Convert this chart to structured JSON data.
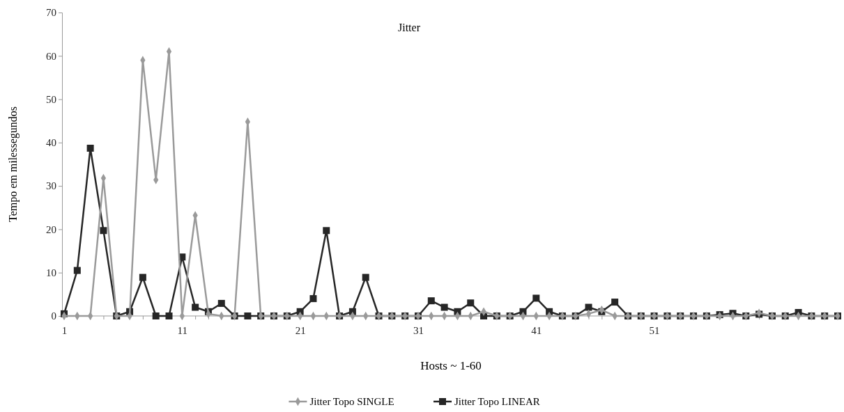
{
  "chart_data": {
    "type": "line",
    "title": "Jitter",
    "xlabel": "Hosts ~ 1-60",
    "ylabel": "Tempo em  milessegundos",
    "categories": [
      "1",
      null,
      null,
      null,
      null,
      null,
      null,
      null,
      null,
      "11",
      null,
      null,
      null,
      null,
      null,
      null,
      null,
      null,
      "21",
      null,
      null,
      null,
      null,
      null,
      null,
      null,
      null,
      "31",
      null,
      null,
      null,
      null,
      null,
      null,
      null,
      null,
      "41",
      null,
      null,
      null,
      null,
      null,
      null,
      null,
      null,
      "51",
      null,
      null,
      null,
      null,
      null,
      null,
      null,
      null,
      null,
      null,
      null,
      null,
      null,
      null
    ],
    "series": [
      {
        "name": "Jitter Topo SINGLE",
        "color": "#9a9a9a",
        "marker": "diamond",
        "values": [
          0,
          0,
          0,
          31.8,
          0,
          0,
          59,
          31.4,
          61,
          0,
          23.2,
          0.5,
          0,
          0,
          44.8,
          0,
          0,
          0,
          0,
          0,
          0,
          0,
          0,
          0,
          0,
          0,
          0,
          0,
          0,
          0,
          0,
          0,
          1,
          0,
          0,
          0,
          0,
          0,
          0,
          0,
          0.5,
          1.4,
          0,
          0,
          0,
          0,
          0,
          0,
          0,
          0,
          0,
          0,
          0,
          0.7,
          0,
          0,
          0,
          0,
          0,
          0
        ]
      },
      {
        "name": "Jitter Topo LINEAR",
        "color": "#262626",
        "marker": "square",
        "values": [
          0.5,
          10.5,
          38.7,
          19.7,
          0,
          1,
          8.9,
          0,
          0,
          13.6,
          2,
          1,
          2.9,
          0,
          0,
          0,
          0,
          0,
          1,
          4,
          19.7,
          0,
          1,
          8.9,
          0,
          0,
          0,
          0,
          3.5,
          2,
          1,
          3,
          0,
          0,
          0,
          1,
          4.1,
          1,
          0,
          0,
          2,
          1,
          3.2,
          0,
          0,
          0,
          0,
          0,
          0,
          0,
          0.3,
          0.6,
          0,
          0.4,
          0,
          0,
          0.8,
          0,
          0,
          0
        ]
      }
    ],
    "ylim": [
      0,
      70
    ],
    "yticks": [
      0,
      10,
      20,
      30,
      40,
      50,
      60,
      70
    ],
    "grid": false,
    "legend": "bottom"
  }
}
